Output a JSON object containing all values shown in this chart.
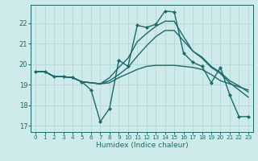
{
  "xlabel": "Humidex (Indice chaleur)",
  "bg_color": "#ceeaea",
  "line_color": "#1a6b6b",
  "grid_color": "#afd4d4",
  "xlim": [
    -0.5,
    23.5
  ],
  "ylim": [
    16.7,
    22.9
  ],
  "xticks": [
    0,
    1,
    2,
    3,
    4,
    5,
    6,
    7,
    8,
    9,
    10,
    11,
    12,
    13,
    14,
    15,
    16,
    17,
    18,
    19,
    20,
    21,
    22,
    23
  ],
  "yticks": [
    17,
    18,
    19,
    20,
    21,
    22
  ],
  "lines": [
    {
      "x": [
        0,
        1,
        2,
        3,
        4,
        5,
        6,
        7,
        8,
        9,
        10,
        11,
        12,
        13,
        14,
        15,
        16,
        17,
        18,
        19,
        20,
        21,
        22,
        23
      ],
      "y": [
        19.65,
        19.65,
        19.4,
        19.4,
        19.35,
        19.15,
        18.75,
        17.2,
        17.85,
        20.2,
        19.9,
        21.9,
        21.8,
        21.95,
        22.6,
        22.55,
        20.55,
        20.1,
        19.9,
        19.1,
        19.85,
        18.5,
        17.45,
        17.45
      ],
      "marker": true,
      "lw": 1.0
    },
    {
      "x": [
        0,
        1,
        2,
        3,
        4,
        5,
        6,
        7,
        8,
        9,
        10,
        11,
        12,
        13,
        14,
        15,
        16,
        17,
        18,
        19,
        20,
        21,
        22,
        23
      ],
      "y": [
        19.65,
        19.65,
        19.4,
        19.4,
        19.35,
        19.15,
        19.1,
        19.05,
        19.1,
        19.35,
        19.55,
        19.75,
        19.9,
        19.95,
        19.95,
        19.95,
        19.9,
        19.85,
        19.75,
        19.5,
        19.2,
        19.05,
        18.9,
        18.75
      ],
      "marker": false,
      "lw": 1.0
    },
    {
      "x": [
        0,
        1,
        2,
        3,
        4,
        5,
        6,
        7,
        8,
        9,
        10,
        11,
        12,
        13,
        14,
        15,
        16,
        17,
        18,
        19,
        20,
        21,
        22,
        23
      ],
      "y": [
        19.65,
        19.65,
        19.4,
        19.4,
        19.35,
        19.15,
        19.1,
        19.05,
        19.2,
        19.5,
        19.85,
        20.4,
        20.9,
        21.35,
        21.65,
        21.65,
        21.15,
        20.65,
        20.35,
        19.9,
        19.6,
        19.2,
        18.95,
        18.65
      ],
      "marker": false,
      "lw": 1.0
    },
    {
      "x": [
        0,
        1,
        2,
        3,
        4,
        5,
        6,
        7,
        8,
        9,
        10,
        11,
        12,
        13,
        14,
        15,
        16,
        17,
        18,
        19,
        20,
        21,
        22,
        23
      ],
      "y": [
        19.65,
        19.65,
        19.4,
        19.4,
        19.35,
        19.15,
        19.1,
        19.05,
        19.35,
        19.85,
        20.3,
        21.1,
        21.5,
        21.85,
        22.1,
        22.1,
        21.35,
        20.65,
        20.3,
        19.85,
        19.55,
        19.1,
        18.75,
        18.4
      ],
      "marker": false,
      "lw": 1.0
    }
  ]
}
